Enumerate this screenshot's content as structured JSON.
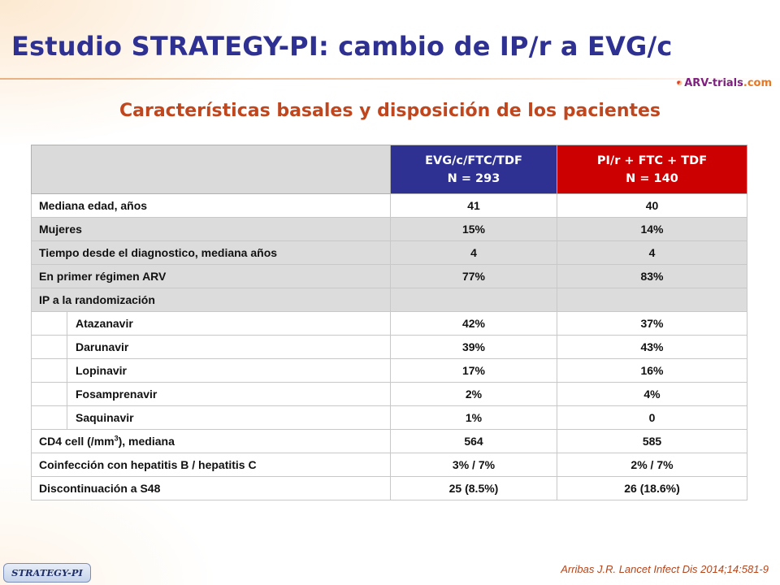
{
  "slide": {
    "title": "Estudio STRATEGY-PI: cambio de IP/r a EVG/c",
    "subtitle": "Características basales y disposición de los pacientes",
    "logo": {
      "part1": "ARV-",
      "part2": "trials",
      "part3": ".com"
    },
    "citation": "Arribas J.R. Lancet Infect Dis 2014;14:581-9",
    "badge": "STRATEGY-PI",
    "colors": {
      "title": "#2e3192",
      "subtitle": "#c0461e",
      "evg_header": "#2e3192",
      "pir_header": "#cc0000"
    }
  },
  "table": {
    "headers": {
      "evg": {
        "line1": "EVG/c/FTC/TDF",
        "line2": "N = 293"
      },
      "pir": {
        "line1": "PI/r + FTC + TDF",
        "line2": "N =  140"
      }
    },
    "rows": {
      "age": {
        "label": "Mediana edad, años",
        "evg": "41",
        "pir": "40"
      },
      "women": {
        "label": "Mujeres",
        "evg": "15%",
        "pir": "14%"
      },
      "time_dx": {
        "label": "Tiempo desde el diagnostico, mediana años",
        "evg": "4",
        "pir": "4"
      },
      "first_arv": {
        "label": "En primer régimen ARV",
        "evg": "77%",
        "pir": "83%"
      },
      "pi_random": {
        "label": "IP a la randomización",
        "evg": "",
        "pir": ""
      },
      "atazanavir": {
        "label": "Atazanavir",
        "evg": "42%",
        "pir": "37%"
      },
      "darunavir": {
        "label": "Darunavir",
        "evg": "39%",
        "pir": "43%"
      },
      "lopinavir": {
        "label": "Lopinavir",
        "evg": "17%",
        "pir": "16%"
      },
      "fosamprenavir": {
        "label": "Fosamprenavir",
        "evg": "2%",
        "pir": "4%"
      },
      "saquinavir": {
        "label": "Saquinavir",
        "evg": "1%",
        "pir": "0"
      },
      "cd4": {
        "label_pre": "CD4 cell (/mm",
        "label_sup": "3",
        "label_post": "), mediana",
        "evg": "564",
        "pir": "585"
      },
      "coinf": {
        "label": "Coinfección con hepatitis B / hepatitis C",
        "evg": "3% / 7%",
        "pir": "2% / 7%"
      },
      "discont": {
        "label": "Discontinuación a S48",
        "evg": "25 (8.5%)",
        "pir": "26 (18.6%)"
      }
    }
  }
}
